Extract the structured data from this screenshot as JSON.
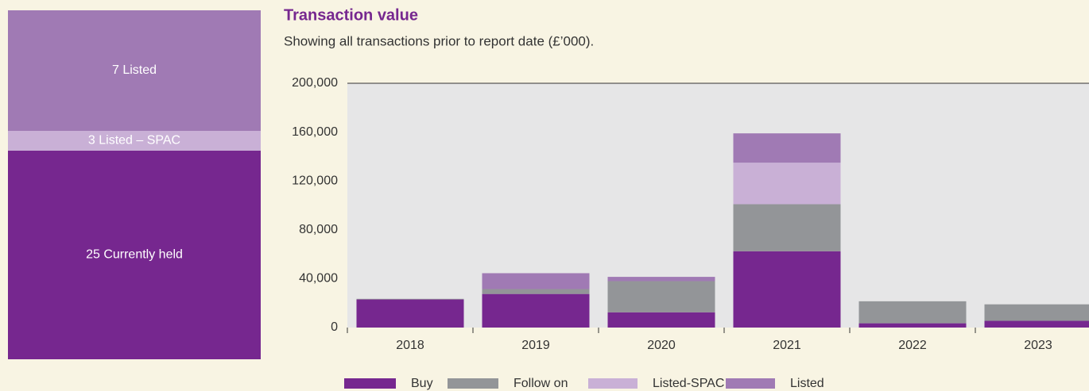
{
  "panel": {
    "segments": [
      {
        "label": "7 Listed",
        "color": "#a07ab4"
      },
      {
        "label": "3 Listed – SPAC",
        "color": "#c9b0d6"
      },
      {
        "label": "25 Currently held",
        "color": "#76278f"
      }
    ]
  },
  "chart_data": {
    "type": "stacked_bar",
    "title": "Transaction value",
    "subtitle": "Showing all transactions prior to report date (£’000).",
    "categories": [
      "2018",
      "2019",
      "2020",
      "2021",
      "2022",
      "2023"
    ],
    "series": [
      {
        "name": "Buy",
        "color": "#76278f",
        "values": [
          23000,
          27500,
          12500,
          62500,
          3500,
          5500
        ]
      },
      {
        "name": "Follow on",
        "color": "#939598",
        "values": [
          500,
          4000,
          25500,
          38500,
          18000,
          13500
        ]
      },
      {
        "name": "Listed-SPAC",
        "color": "#c9b0d6",
        "values": [
          0,
          0,
          0,
          34000,
          0,
          0
        ]
      },
      {
        "name": "Listed",
        "color": "#a07ab4",
        "values": [
          0,
          13000,
          3500,
          24000,
          0,
          0
        ]
      }
    ],
    "ylim": [
      0,
      200000
    ],
    "yticks": [
      {
        "value": 0,
        "label": "0"
      },
      {
        "value": 40000,
        "label": "40,000"
      },
      {
        "value": 80000,
        "label": "80,000"
      },
      {
        "value": 120000,
        "label": "120,000"
      },
      {
        "value": 160000,
        "label": "160,000"
      },
      {
        "value": 200000,
        "label": "200,000"
      }
    ],
    "grid": false,
    "legend": "bottom"
  }
}
